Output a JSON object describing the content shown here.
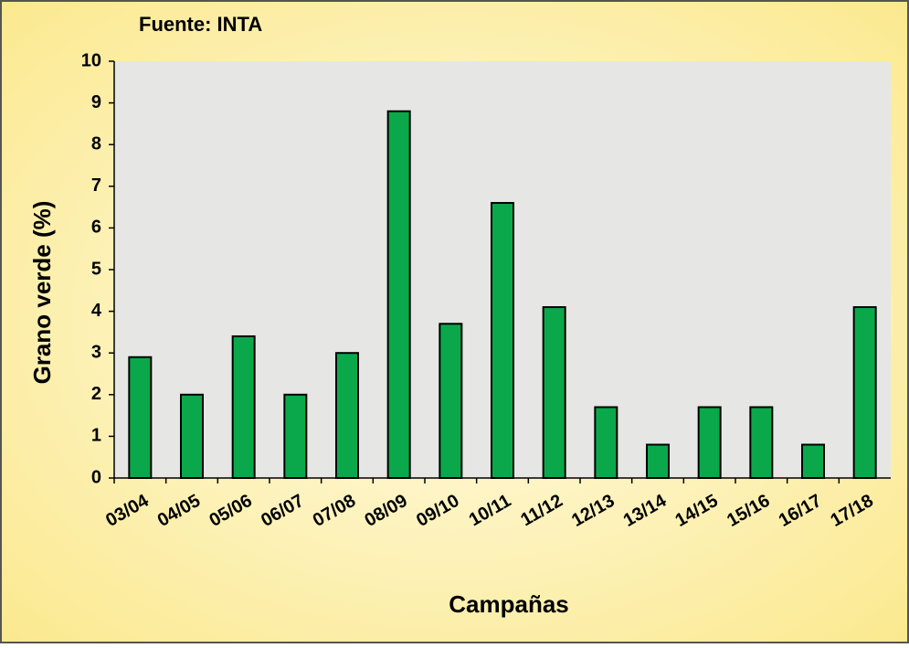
{
  "chart_data": {
    "type": "bar",
    "title": "Fuente: INTA",
    "xlabel": "Campañas",
    "ylabel": "Grano verde (%)",
    "categories": [
      "03/04",
      "04/05",
      "05/06",
      "06/07",
      "07/08",
      "08/09",
      "09/10",
      "10/11",
      "11/12",
      "12/13",
      "13/14",
      "14/15",
      "15/16",
      "16/17",
      "17/18"
    ],
    "values": [
      2.9,
      2.0,
      3.4,
      2.0,
      3.0,
      8.8,
      3.7,
      6.6,
      4.1,
      1.7,
      0.8,
      1.7,
      1.7,
      0.8,
      4.1
    ],
    "color": "#0aa84a",
    "ylim": [
      0,
      10
    ],
    "yticks": [
      0,
      1,
      2,
      3,
      4,
      5,
      6,
      7,
      8,
      9,
      10
    ],
    "grid": false
  }
}
